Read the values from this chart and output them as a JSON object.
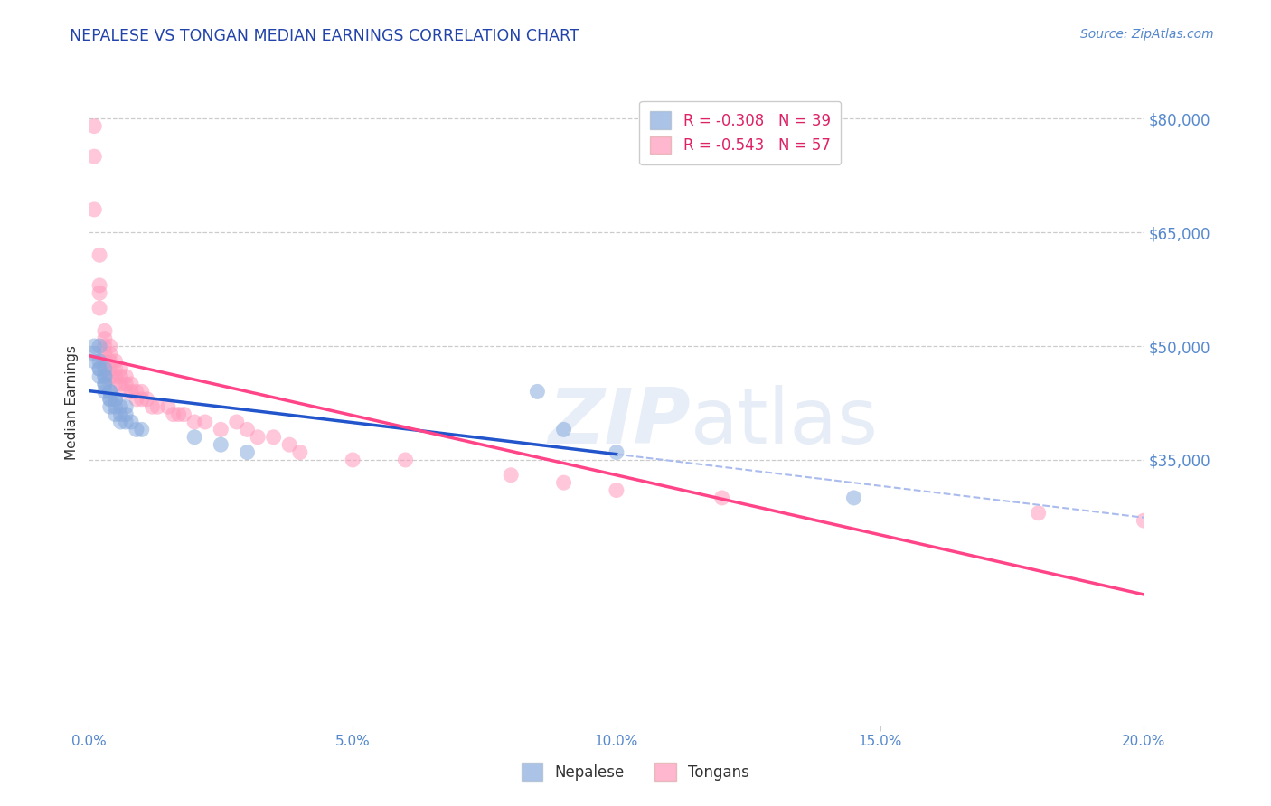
{
  "title": "NEPALESE VS TONGAN MEDIAN EARNINGS CORRELATION CHART",
  "source": "Source: ZipAtlas.com",
  "ylabel_label": "Median Earnings",
  "x_min": 0.0,
  "x_max": 0.2,
  "y_min": 0,
  "y_max": 85000,
  "yticks": [
    35000,
    50000,
    65000,
    80000
  ],
  "ytick_labels": [
    "$35,000",
    "$50,000",
    "$65,000",
    "$80,000"
  ],
  "xticks": [
    0.0,
    0.05,
    0.1,
    0.15,
    0.2
  ],
  "xtick_labels": [
    "0.0%",
    "5.0%",
    "10.0%",
    "15.0%",
    "20.0%"
  ],
  "background_color": "#ffffff",
  "grid_color": "#cccccc",
  "legend1_label": "R = -0.308   N = 39",
  "legend2_label": "R = -0.543   N = 57",
  "legend_label1": "Nepalese",
  "legend_label2": "Tongans",
  "blue_color": "#88aadd",
  "pink_color": "#ff99bb",
  "title_color": "#2244aa",
  "tick_color": "#5588cc",
  "blue_line_color": "#2255cc",
  "pink_line_color": "#ff4488",
  "blue_dash_color": "#aabbee",
  "nepalese_x": [
    0.001,
    0.001,
    0.001,
    0.002,
    0.002,
    0.002,
    0.002,
    0.002,
    0.003,
    0.003,
    0.003,
    0.003,
    0.003,
    0.003,
    0.004,
    0.004,
    0.004,
    0.004,
    0.004,
    0.005,
    0.005,
    0.005,
    0.005,
    0.006,
    0.006,
    0.006,
    0.007,
    0.007,
    0.007,
    0.008,
    0.009,
    0.01,
    0.02,
    0.025,
    0.03,
    0.085,
    0.09,
    0.1,
    0.145
  ],
  "nepalese_y": [
    50000,
    49000,
    48000,
    48000,
    47000,
    47000,
    46000,
    50000,
    47000,
    46000,
    45000,
    44000,
    45000,
    46000,
    44000,
    43000,
    44000,
    43000,
    42000,
    43000,
    42000,
    41000,
    43000,
    42000,
    41000,
    40000,
    41000,
    40000,
    42000,
    40000,
    39000,
    39000,
    38000,
    37000,
    36000,
    44000,
    39000,
    36000,
    30000
  ],
  "tongan_x": [
    0.001,
    0.001,
    0.001,
    0.002,
    0.002,
    0.002,
    0.002,
    0.003,
    0.003,
    0.003,
    0.003,
    0.003,
    0.004,
    0.004,
    0.004,
    0.004,
    0.004,
    0.005,
    0.005,
    0.005,
    0.005,
    0.006,
    0.006,
    0.006,
    0.007,
    0.007,
    0.007,
    0.008,
    0.008,
    0.009,
    0.009,
    0.01,
    0.01,
    0.011,
    0.012,
    0.013,
    0.015,
    0.016,
    0.017,
    0.018,
    0.02,
    0.022,
    0.025,
    0.028,
    0.03,
    0.032,
    0.035,
    0.038,
    0.04,
    0.05,
    0.06,
    0.08,
    0.09,
    0.1,
    0.12,
    0.18,
    0.2
  ],
  "tongan_y": [
    79000,
    75000,
    68000,
    62000,
    58000,
    57000,
    55000,
    52000,
    51000,
    50000,
    49000,
    48000,
    50000,
    49000,
    48000,
    47000,
    46000,
    48000,
    47000,
    46000,
    45000,
    47000,
    46000,
    45000,
    46000,
    45000,
    44000,
    45000,
    44000,
    44000,
    43000,
    44000,
    43000,
    43000,
    42000,
    42000,
    42000,
    41000,
    41000,
    41000,
    40000,
    40000,
    39000,
    40000,
    39000,
    38000,
    38000,
    37000,
    36000,
    35000,
    35000,
    33000,
    32000,
    31000,
    30000,
    28000,
    27000
  ]
}
